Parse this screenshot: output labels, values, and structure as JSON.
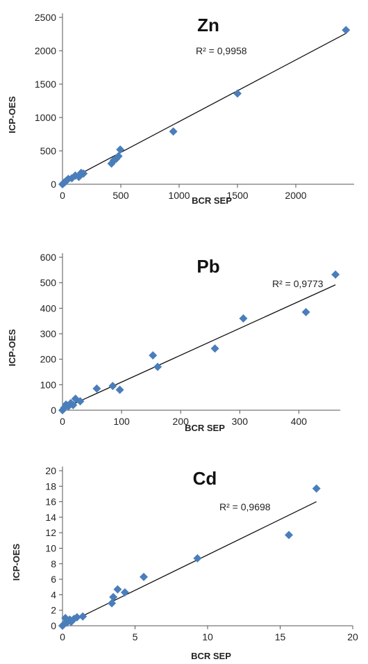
{
  "chart_data": [
    {
      "type": "scatter",
      "title": "Zn",
      "xlabel": "BCR SEP",
      "ylabel": "ICP-OES",
      "xlim": [
        0,
        2500
      ],
      "ylim": [
        0,
        2500
      ],
      "xticks": [
        "0",
        "500",
        "1000",
        "1500",
        "2000"
      ],
      "yticks": [
        "0",
        "500",
        "1000",
        "1500",
        "2000",
        "2500"
      ],
      "annotation": "R² = 0,9958",
      "trendline": {
        "x": [
          0,
          2430
        ],
        "y": [
          15,
          2260
        ]
      },
      "series": [
        {
          "x": [
            0,
            10,
            20,
            30,
            50,
            80,
            110,
            140,
            160,
            180,
            420,
            440,
            460,
            480,
            495,
            950,
            1500,
            2430
          ],
          "y": [
            0,
            20,
            30,
            50,
            80,
            90,
            130,
            110,
            170,
            160,
            310,
            360,
            380,
            420,
            520,
            790,
            1360,
            2310
          ]
        }
      ],
      "marker_color": "#4a7ebb"
    },
    {
      "type": "scatter",
      "title": "Pb",
      "xlabel": "BCR SEP",
      "ylabel": "ICP-OES",
      "xlim": [
        0,
        470
      ],
      "ylim": [
        0,
        600
      ],
      "xticks": [
        "0",
        "100",
        "200",
        "300",
        "400"
      ],
      "yticks": [
        "0",
        "100",
        "200",
        "300",
        "400",
        "500",
        "600"
      ],
      "annotation": "R² = 0,9773",
      "trendline": {
        "x": [
          0,
          462
        ],
        "y": [
          5,
          492
        ]
      },
      "series": [
        {
          "x": [
            0,
            3,
            6,
            10,
            14,
            18,
            22,
            30,
            58,
            85,
            97,
            153,
            161,
            258,
            306,
            412,
            462
          ],
          "y": [
            0,
            10,
            22,
            15,
            28,
            20,
            45,
            35,
            85,
            95,
            80,
            215,
            170,
            242,
            360,
            385,
            532
          ]
        }
      ],
      "marker_color": "#4a7ebb"
    },
    {
      "type": "scatter",
      "title": "Cd",
      "xlabel": "BCR SEP",
      "ylabel": "ICP-OES",
      "xlim": [
        0,
        20
      ],
      "ylim": [
        0,
        20
      ],
      "xticks": [
        "0",
        "5",
        "10",
        "15",
        "20"
      ],
      "yticks": [
        "0",
        "2",
        "4",
        "6",
        "8",
        "10",
        "12",
        "14",
        "16",
        "18",
        "20"
      ],
      "annotation": "R² = 0,9698",
      "trendline": {
        "x": [
          0,
          17.5
        ],
        "y": [
          0,
          16
        ]
      },
      "series": [
        {
          "x": [
            0,
            0.1,
            0.2,
            0.3,
            0.4,
            0.5,
            0.6,
            0.8,
            1,
            1.4,
            3.4,
            3.5,
            3.8,
            4.3,
            5.6,
            9.3,
            15.6,
            17.5
          ],
          "y": [
            0,
            0.2,
            1,
            0.4,
            0.6,
            0.8,
            0.5,
            0.9,
            1.1,
            1.2,
            2.9,
            3.7,
            4.7,
            4.3,
            6.3,
            8.7,
            11.7,
            17.7
          ]
        }
      ],
      "marker_color": "#4a7ebb"
    }
  ]
}
